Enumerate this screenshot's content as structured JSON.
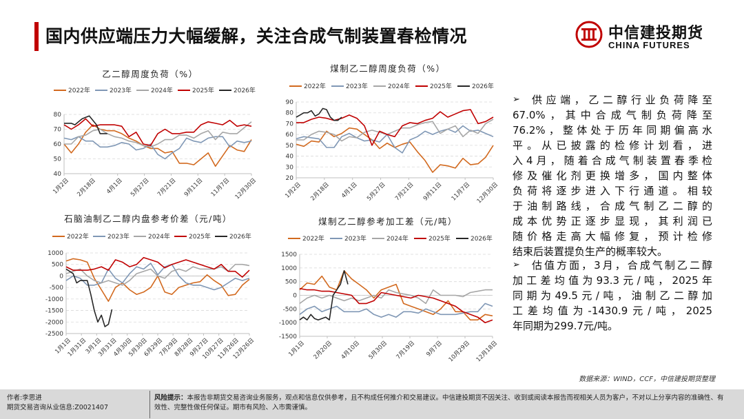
{
  "header": {
    "title": "国内供应端压力大幅缓解，关注合成气制装置春检情况",
    "logo_cn": "中信建投期货",
    "logo_en": "CHINA FUTURES"
  },
  "colors": {
    "2022": "#d2691e",
    "2023": "#7f97b5",
    "2024": "#a6a6a6",
    "2025": "#c00000",
    "2026": "#262626",
    "accent": "#c00000"
  },
  "chart_data": [
    {
      "type": "line",
      "title": "乙二醇周度负荷（%）",
      "xunit": "week",
      "xlim": [
        0,
        52
      ],
      "ylim": [
        40,
        80
      ],
      "yticks": [
        40,
        50,
        60,
        70,
        80
      ],
      "xticks": [
        "1月2日",
        "2月18日",
        "4月1日",
        "5月27日",
        "7月21日",
        "9月11日",
        "11月7日",
        "12月30日"
      ],
      "series": [
        {
          "name": "2022年",
          "step": 2,
          "values": [
            60,
            54,
            60,
            68,
            73,
            70,
            69,
            69,
            67,
            64,
            62,
            59,
            57,
            57,
            54,
            55,
            47,
            47,
            46,
            50,
            54,
            45,
            52,
            59,
            56,
            55,
            63
          ]
        },
        {
          "name": "2023年",
          "step": 2,
          "values": [
            64,
            63,
            65,
            62,
            62,
            58,
            58,
            59,
            61,
            60,
            56,
            57,
            60,
            53,
            50,
            54,
            57,
            64,
            62,
            61,
            64,
            65,
            65,
            58,
            62,
            61,
            62
          ]
        },
        {
          "name": "2024年",
          "step": 2,
          "values": [
            60,
            60,
            65,
            66,
            69,
            70,
            67,
            65,
            64,
            62,
            61,
            59,
            58,
            60,
            63,
            63,
            66,
            66,
            64,
            67,
            69,
            63,
            68,
            67,
            67,
            71,
            75
          ]
        },
        {
          "name": "2025年",
          "step": 2,
          "values": [
            73,
            70,
            73,
            77,
            72,
            73,
            73,
            73,
            72,
            65,
            68,
            60,
            59,
            67,
            70,
            67,
            67,
            68,
            68,
            73,
            75,
            74,
            73,
            76,
            72,
            73,
            72
          ]
        },
        {
          "name": "2026年",
          "step": 1,
          "values": [
            74,
            74,
            74,
            73,
            75,
            77,
            78,
            79,
            76,
            73,
            67,
            67,
            67
          ]
        }
      ]
    },
    {
      "type": "line",
      "title": "煤制乙二醇周度负荷（%）",
      "xunit": "week",
      "xlim": [
        0,
        52
      ],
      "ylim": [
        20,
        90
      ],
      "yticks": [
        20,
        30,
        40,
        50,
        60,
        70,
        80,
        90
      ],
      "xticks": [
        "1月2日",
        "2月18日",
        "4月1日",
        "5月27日",
        "7月21日",
        "9月11日",
        "11月7日",
        "12月30日"
      ],
      "series": [
        {
          "name": "2022年",
          "step": 2,
          "values": [
            51,
            49,
            54,
            53,
            63,
            58,
            61,
            66,
            65,
            60,
            55,
            47,
            52,
            48,
            51,
            53,
            44,
            36,
            25,
            32,
            31,
            29,
            38,
            32,
            33,
            39,
            50
          ]
        },
        {
          "name": "2023年",
          "step": 2,
          "values": [
            56,
            58,
            57,
            56,
            48,
            48,
            58,
            61,
            57,
            54,
            55,
            53,
            60,
            48,
            43,
            55,
            58,
            63,
            60,
            63,
            65,
            62,
            68,
            63,
            64,
            61,
            58
          ]
        },
        {
          "name": "2024年",
          "step": 2,
          "values": [
            55,
            55,
            60,
            63,
            62,
            60,
            54,
            58,
            57,
            62,
            64,
            62,
            60,
            63,
            66,
            66,
            69,
            71,
            72,
            61,
            65,
            68,
            58,
            64,
            61,
            70,
            74
          ]
        },
        {
          "name": "2025年",
          "step": 2,
          "values": [
            71,
            71,
            74,
            76,
            75,
            73,
            75,
            78,
            75,
            68,
            50,
            63,
            60,
            58,
            68,
            71,
            70,
            73,
            75,
            81,
            76,
            79,
            82,
            83,
            70,
            72,
            76
          ]
        },
        {
          "name": "2026年",
          "step": 1,
          "values": [
            76,
            78,
            80,
            80,
            82,
            77,
            79,
            84,
            83,
            76,
            73,
            73,
            76
          ]
        }
      ]
    },
    {
      "type": "line",
      "title": "石脑油制乙二醇内盘参考价差（元/吨）",
      "xunit": "day",
      "xlim": [
        0,
        364
      ],
      "ylim": [
        -2500,
        1000
      ],
      "yticks": [
        -2500,
        -2000,
        -1500,
        -1000,
        -500,
        0,
        500,
        1000
      ],
      "xticks": [
        "1月1日",
        "1月31日",
        "3月1日",
        "3月31日",
        "4月30日",
        "5月30日",
        "6月29日",
        "7月29日",
        "8月28日",
        "9月27日",
        "10月27日",
        "11月26日",
        "12月26日"
      ],
      "series": [
        {
          "name": "2022年",
          "step": 14,
          "values": [
            650,
            750,
            700,
            600,
            -100,
            -600,
            -1100,
            -500,
            -300,
            -600,
            -800,
            -700,
            -500,
            0,
            -700,
            -800,
            -500,
            -400,
            -300,
            -250,
            50,
            -200,
            -400,
            -850,
            -800,
            -400,
            -150
          ]
        },
        {
          "name": "2023年",
          "step": 14,
          "values": [
            -200,
            0,
            -100,
            -400,
            -400,
            -300,
            300,
            -100,
            -300,
            100,
            400,
            300,
            550,
            50,
            400,
            500,
            0,
            -300,
            -400,
            -400,
            -500,
            -600,
            -500,
            -300,
            -100,
            -200,
            -100
          ]
        },
        {
          "name": "2024年",
          "step": 14,
          "values": [
            100,
            200,
            300,
            0,
            -200,
            -300,
            -200,
            -300,
            -400,
            -200,
            100,
            200,
            300,
            0,
            -100,
            200,
            300,
            200,
            400,
            300,
            300,
            300,
            400,
            200,
            500,
            500,
            450
          ]
        },
        {
          "name": "2025年",
          "step": 14,
          "values": [
            400,
            250,
            250,
            250,
            300,
            400,
            250,
            700,
            600,
            400,
            500,
            800,
            700,
            600,
            350,
            500,
            600,
            700,
            600,
            500,
            400,
            300,
            500,
            200,
            200,
            -50,
            250
          ]
        },
        {
          "name": "2026年",
          "step": 7,
          "values": [
            300,
            200,
            100,
            -300,
            -200,
            -200,
            -200,
            -800,
            -1500,
            -2000,
            -1700,
            -2200,
            -2100,
            -1450
          ]
        }
      ]
    },
    {
      "type": "line",
      "title": "煤制乙二醇参考加工差（元/吨）",
      "xunit": "day",
      "xlim": [
        0,
        364
      ],
      "ylim": [
        -1500,
        1500
      ],
      "yticks": [
        -1500,
        -1000,
        -500,
        0,
        500,
        1000,
        1500
      ],
      "xticks": [
        "1月1日",
        "2月20日",
        "4月10日",
        "5月30日",
        "7月19日",
        "9月7日",
        "10月29日",
        "12月18日"
      ],
      "series": [
        {
          "name": "2022年",
          "step": 14,
          "values": [
            200,
            450,
            400,
            700,
            300,
            200,
            900,
            600,
            400,
            200,
            -100,
            200,
            300,
            400,
            -300,
            -400,
            -500,
            -600,
            -700,
            -500,
            -200,
            -600,
            -600,
            -900,
            -900,
            -700,
            -750
          ]
        },
        {
          "name": "2023年",
          "step": 14,
          "values": [
            -700,
            -500,
            -400,
            -600,
            -500,
            -400,
            -600,
            -600,
            -600,
            -500,
            -700,
            -800,
            -700,
            -800,
            -600,
            -600,
            -650,
            -500,
            -600,
            -700,
            -700,
            -700,
            -650,
            -600,
            -600,
            -300,
            -400
          ]
        },
        {
          "name": "2024年",
          "step": 14,
          "values": [
            -300,
            -100,
            0,
            -100,
            0,
            -100,
            -200,
            -100,
            -200,
            -100,
            0,
            -100,
            200,
            100,
            50,
            0,
            -100,
            -300,
            200,
            0,
            0,
            0,
            -50,
            100,
            150,
            200,
            200
          ]
        },
        {
          "name": "2025年",
          "step": 14,
          "values": [
            250,
            200,
            200,
            150,
            150,
            100,
            50,
            0,
            -300,
            -300,
            -200,
            100,
            50,
            0,
            -50,
            -100,
            0,
            -50,
            -100,
            -200,
            -300,
            -400,
            -600,
            -700,
            -800,
            -1000,
            -900
          ]
        },
        {
          "name": "2026年",
          "step": 7,
          "values": [
            -900,
            -800,
            -900,
            -700,
            -850,
            -900,
            -850,
            -800,
            -900,
            0,
            200,
            400,
            900,
            400
          ]
        }
      ]
    }
  ],
  "commentary": {
    "bullet1_lines": [
      "供应端，乙二醇行业负荷降至",
      "67.0%，其中合成气制负荷降至",
      "76.2%，整体处于历年同期偏高水",
      "平。从已披露的检修计划看，进",
      "入4月，随着合成气制装置春季检",
      "修及催化剂更换增多，国内整体",
      "负荷将逐步进入下行通道。相较",
      "于油制路线，合成气制乙二醇的",
      "成本优势正逐步显现，其利润已",
      "随价格走高大幅修复，预计检修",
      "结束后装置提负生产的概率较大。"
    ],
    "bullet2_lines": [
      "估值方面，3月，合成气制乙二醇",
      "加工差均值为93.3元/吨，2025年",
      "同期为49.5元/吨，油制乙二醇加",
      "工差均值为-1430.9元/吨，2025",
      "年同期为299.7元/吨。"
    ],
    "bullet_icon": "➢"
  },
  "source": "数据来源：WIND，CCF，中信建投期货整理",
  "footer": {
    "author": "作者:李思进",
    "license": "期货交易咨询从业信息:Z0021407",
    "risk_label": "风险提示：",
    "risk_text": "本报告非期货交易咨询业务服务，观点和信息仅供参考，且不构成任何推介和交易建议。中信建投期货不因关注、收到或阅读本报告而视相关人员为客户，不对以上分享内容的准确性、有效性、完整性做任何保证。期市有风险、入市需谨慎。"
  }
}
